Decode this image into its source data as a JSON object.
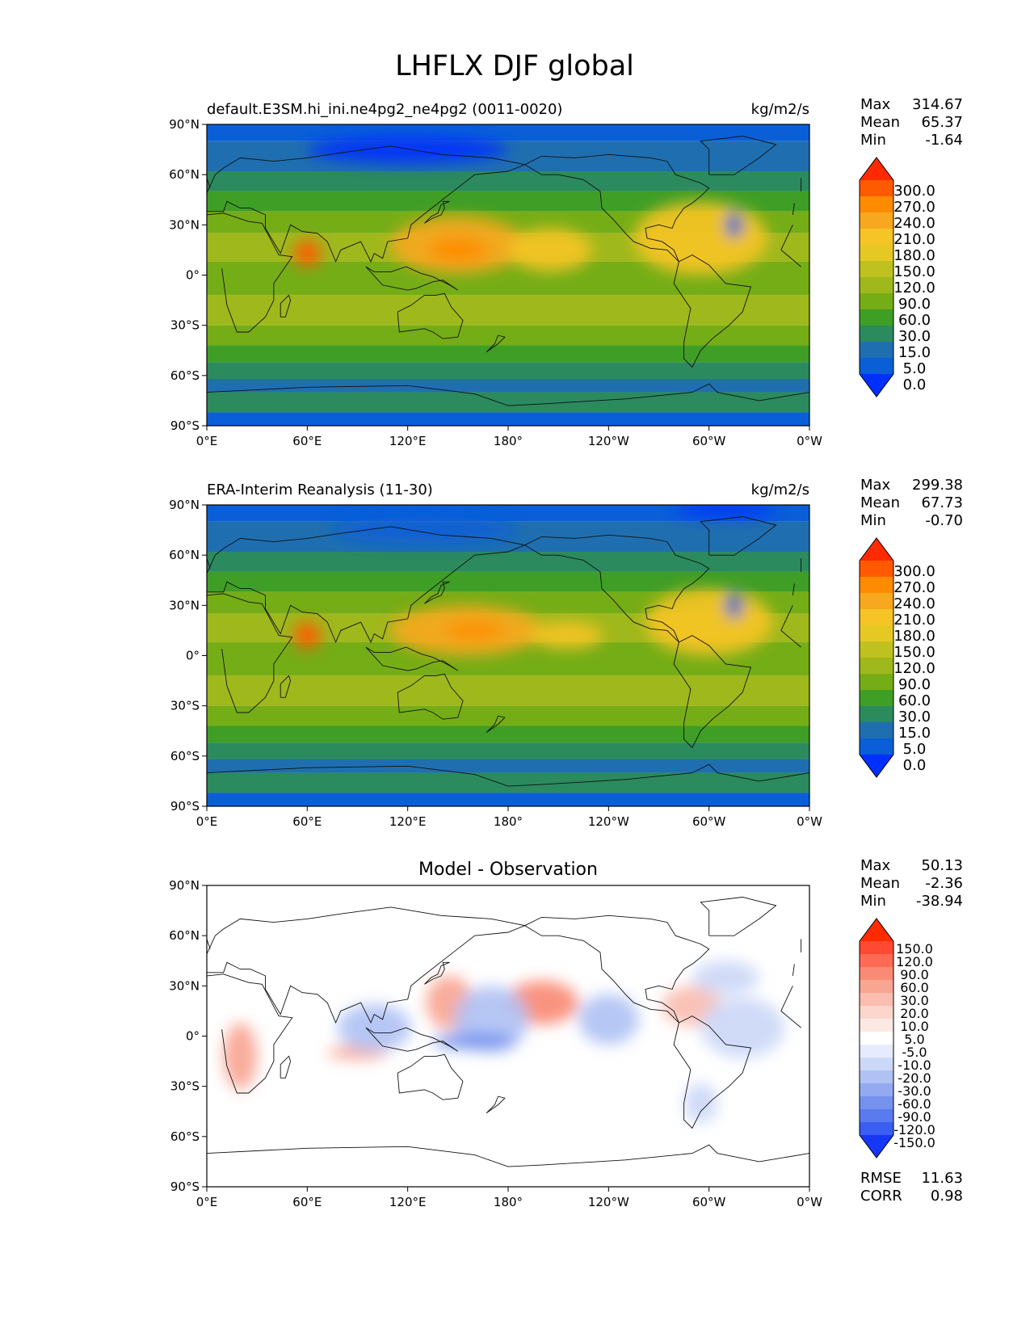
{
  "figure": {
    "title": "LHFLX DJF global"
  },
  "axes": {
    "lon_ticks": [
      "0°E",
      "60°E",
      "120°E",
      "180°",
      "120°W",
      "60°W",
      "0°W"
    ],
    "lat_ticks": [
      "90°N",
      "60°N",
      "30°N",
      "0°",
      "30°S",
      "60°S",
      "90°S"
    ]
  },
  "panels": [
    {
      "id": "model",
      "title_left": "default.E3SM.hi_ini.ne4pg2_ne4pg2 (0011-0020)",
      "title_center": "",
      "units": "kg/m2/s",
      "stats": [
        {
          "label": "Max",
          "value": "314.67"
        },
        {
          "label": "Mean",
          "value": "65.37"
        },
        {
          "label": "Min",
          "value": "-1.64"
        }
      ],
      "colorbar": {
        "labels": [
          "300.0",
          "270.0",
          "240.0",
          "210.0",
          "180.0",
          "150.0",
          "120.0",
          "90.0",
          "60.0",
          "30.0",
          "15.0",
          "5.0",
          "0.0"
        ],
        "colors": [
          "#ff2a00",
          "#ff5a00",
          "#ff8c00",
          "#f7a81f",
          "#f5c425",
          "#e6c823",
          "#bfc21e",
          "#9fb81c",
          "#75ad17",
          "#3f9e26",
          "#2b8a5e",
          "#1f6fb0",
          "#0a5fd8",
          "#0030ff"
        ]
      },
      "blobs": [
        {
          "lon": 150,
          "lat": 18,
          "rx": 40,
          "ry": 17,
          "color": "#f7a81f"
        },
        {
          "lon": 150,
          "lat": 15,
          "rx": 18,
          "ry": 7,
          "color": "#ff8c00"
        },
        {
          "lon": 205,
          "lat": 15,
          "rx": 25,
          "ry": 13,
          "color": "#f5c425"
        },
        {
          "lon": 60,
          "lat": 13,
          "rx": 8,
          "ry": 8,
          "color": "#ff5a00"
        },
        {
          "lon": 295,
          "lat": 22,
          "rx": 40,
          "ry": 22,
          "color": "#f5c425"
        },
        {
          "lon": 120,
          "lat": 75,
          "rx": 60,
          "ry": 8,
          "color": "#0030ff"
        },
        {
          "lon": 315,
          "lat": 30,
          "rx": 5,
          "ry": 8,
          "color": "#0a5fd8"
        }
      ]
    },
    {
      "id": "obs",
      "title_left": "ERA-Interim Reanalysis (11-30)",
      "title_center": "",
      "units": "kg/m2/s",
      "stats": [
        {
          "label": "Max",
          "value": "299.38"
        },
        {
          "label": "Mean",
          "value": "67.73"
        },
        {
          "label": "Min",
          "value": "-0.70"
        }
      ],
      "colorbar": {
        "labels": [
          "300.0",
          "270.0",
          "240.0",
          "210.0",
          "180.0",
          "150.0",
          "120.0",
          "90.0",
          "60.0",
          "30.0",
          "15.0",
          "5.0",
          "0.0"
        ],
        "colors": [
          "#ff2a00",
          "#ff5a00",
          "#ff8c00",
          "#f7a81f",
          "#f5c425",
          "#e6c823",
          "#bfc21e",
          "#9fb81c",
          "#75ad17",
          "#3f9e26",
          "#2b8a5e",
          "#1f6fb0",
          "#0a5fd8",
          "#0030ff"
        ]
      },
      "blobs": [
        {
          "lon": 155,
          "lat": 15,
          "rx": 45,
          "ry": 15,
          "color": "#f7a81f"
        },
        {
          "lon": 160,
          "lat": 15,
          "rx": 18,
          "ry": 5,
          "color": "#ff8c00"
        },
        {
          "lon": 215,
          "lat": 12,
          "rx": 22,
          "ry": 8,
          "color": "#f5c425"
        },
        {
          "lon": 60,
          "lat": 12,
          "rx": 8,
          "ry": 8,
          "color": "#ff5a00"
        },
        {
          "lon": 300,
          "lat": 20,
          "rx": 38,
          "ry": 20,
          "color": "#f5c425"
        },
        {
          "lon": 130,
          "lat": 75,
          "rx": 55,
          "ry": 8,
          "color": "#0a5fd8"
        },
        {
          "lon": 310,
          "lat": 87,
          "rx": 30,
          "ry": 4,
          "color": "#0030ff"
        },
        {
          "lon": 315,
          "lat": 30,
          "rx": 5,
          "ry": 8,
          "color": "#0a5fd8"
        }
      ]
    },
    {
      "id": "diff",
      "title_left": "",
      "title_center": "Model - Observation",
      "units": "",
      "stats": [
        {
          "label": "Max",
          "value": "50.13"
        },
        {
          "label": "Mean",
          "value": "-2.36"
        },
        {
          "label": "Min",
          "value": "-38.94"
        }
      ],
      "extra_stats": [
        {
          "label": "RMSE",
          "value": "11.63"
        },
        {
          "label": "CORR",
          "value": "0.98"
        }
      ],
      "colorbar": {
        "labels": [
          "150.0",
          "120.0",
          "90.0",
          "60.0",
          "30.0",
          "20.0",
          "10.0",
          "5.0",
          "-5.0",
          "-10.0",
          "-20.0",
          "-30.0",
          "-60.0",
          "-90.0",
          "-120.0",
          "-150.0"
        ],
        "colors": [
          "#ff2a00",
          "#ff4a33",
          "#ff6a55",
          "#f98a75",
          "#f8a592",
          "#fabdb0",
          "#fcd6cc",
          "#fde9e4",
          "#ffffff",
          "#e6ecfb",
          "#ccd8f7",
          "#b0c2f4",
          "#93aaf1",
          "#7592ee",
          "#5a7aef",
          "#3a5ef3",
          "#1737f6"
        ]
      },
      "blobs": [
        {
          "lon": 20,
          "lat": -12,
          "rx": 10,
          "ry": 20,
          "color": "#f8a592"
        },
        {
          "lon": 145,
          "lat": 20,
          "rx": 14,
          "ry": 16,
          "color": "#f8a592"
        },
        {
          "lon": 200,
          "lat": 20,
          "rx": 22,
          "ry": 13,
          "color": "#f98a75"
        },
        {
          "lon": 90,
          "lat": -10,
          "rx": 18,
          "ry": 4,
          "color": "#f8a592"
        },
        {
          "lon": 290,
          "lat": 18,
          "rx": 18,
          "ry": 12,
          "color": "#fabdb0"
        },
        {
          "lon": 100,
          "lat": 5,
          "rx": 22,
          "ry": 14,
          "color": "#b0c2f4"
        },
        {
          "lon": 170,
          "lat": 10,
          "rx": 22,
          "ry": 20,
          "color": "#b0c2f4"
        },
        {
          "lon": 160,
          "lat": -3,
          "rx": 25,
          "ry": 5,
          "color": "#7592ee"
        },
        {
          "lon": 240,
          "lat": 10,
          "rx": 18,
          "ry": 15,
          "color": "#b0c2f4"
        },
        {
          "lon": 320,
          "lat": 5,
          "rx": 25,
          "ry": 18,
          "color": "#ccd8f7"
        },
        {
          "lon": 310,
          "lat": 35,
          "rx": 20,
          "ry": 10,
          "color": "#ccd8f7"
        },
        {
          "lon": 295,
          "lat": -40,
          "rx": 10,
          "ry": 12,
          "color": "#ccd8f7"
        }
      ]
    }
  ]
}
